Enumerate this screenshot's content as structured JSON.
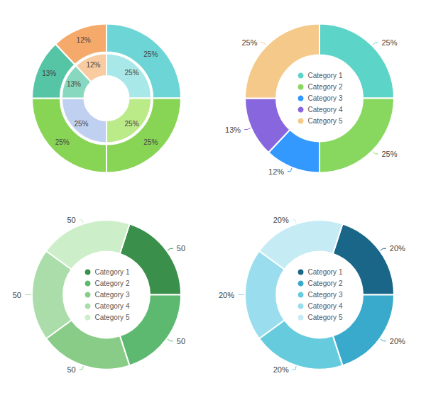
{
  "chart_data": [
    {
      "type": "pie",
      "data_labels": true,
      "series": [
        {
          "values": [
            25,
            25,
            25,
            13,
            12
          ],
          "value_labels": [
            "25%",
            "25%",
            "25%",
            "13%",
            "12%"
          ],
          "colors": [
            "#6DD5D5",
            "#88D454",
            "#88D454",
            "#55C5A5",
            "#F5A96A"
          ]
        },
        {
          "values": [
            25,
            25,
            25,
            13,
            12
          ],
          "value_labels": [
            "25%",
            "25%",
            "25%",
            "13%",
            "12%"
          ],
          "colors": [
            "#A8E8E8",
            "#BBEA88",
            "#C0D0F0",
            "#88D8C0",
            "#F8CCA0"
          ]
        }
      ]
    },
    {
      "type": "pie",
      "data_labels": true,
      "legend": "center",
      "categories": [
        "Category 1",
        "Category 2",
        "Category 3",
        "Category 4",
        "Category 5"
      ],
      "values": [
        25,
        25,
        12,
        13,
        25
      ],
      "value_labels": [
        "25%",
        "25%",
        "12%",
        "13%",
        "25%"
      ],
      "colors": [
        "#5DD4C8",
        "#88D860",
        "#3399FF",
        "#8866DD",
        "#F5C98A"
      ]
    },
    {
      "type": "pie",
      "data_labels": true,
      "legend": "center",
      "categories": [
        "Category 1",
        "Category 2",
        "Category 3",
        "Category 4",
        "Category 5"
      ],
      "values": [
        50,
        50,
        50,
        50,
        50
      ],
      "colors": [
        "#3A8F4A",
        "#5DB870",
        "#88CC88",
        "#AADDAA",
        "#CCEEC8"
      ]
    },
    {
      "type": "pie",
      "data_labels": true,
      "legend": "center",
      "categories": [
        "Category 1",
        "Category 2",
        "Category 3",
        "Category 4",
        "Category 5"
      ],
      "values": [
        20,
        20,
        20,
        20,
        20
      ],
      "value_labels": [
        "20%",
        "20%",
        "20%",
        "20%",
        "20%"
      ],
      "colors": [
        "#1A6688",
        "#3AAACC",
        "#66CCDD",
        "#99DDEE",
        "#C5EBF5"
      ]
    }
  ]
}
